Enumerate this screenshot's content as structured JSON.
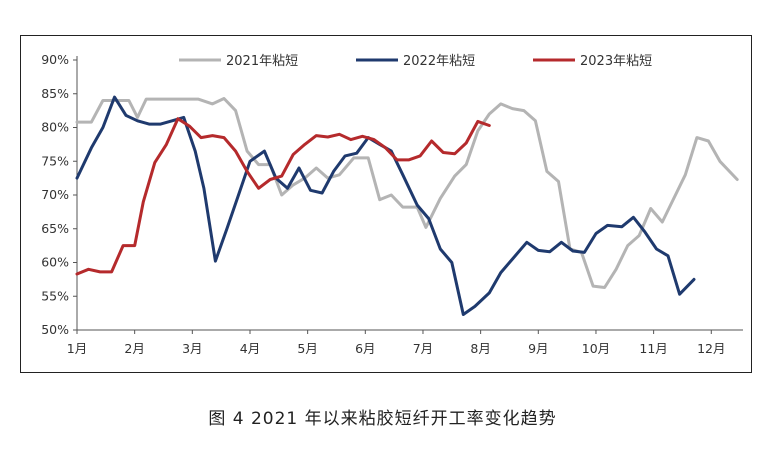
{
  "caption": "图 4 2021 年以来粘胶短纤开工率变化趋势",
  "chart_data": {
    "type": "line",
    "ylim": [
      50,
      90
    ],
    "y_ticks": [
      "50%",
      "55%",
      "60%",
      "65%",
      "70%",
      "75%",
      "80%",
      "85%",
      "90%"
    ],
    "x_ticks": [
      "1月",
      "2月",
      "3月",
      "4月",
      "5月",
      "6月",
      "7月",
      "8月",
      "9月",
      "10月",
      "11月",
      "12月"
    ],
    "legend_position": "top",
    "series": [
      {
        "name": "2021年粘短",
        "color": "#b4b4b4",
        "points": [
          [
            1.0,
            80.8
          ],
          [
            1.25,
            80.8
          ],
          [
            1.45,
            84.0
          ],
          [
            1.65,
            84.0
          ],
          [
            1.9,
            84.0
          ],
          [
            2.05,
            81.5
          ],
          [
            2.2,
            84.2
          ],
          [
            2.5,
            84.2
          ],
          [
            2.8,
            84.2
          ],
          [
            3.1,
            84.2
          ],
          [
            3.35,
            83.5
          ],
          [
            3.55,
            84.3
          ],
          [
            3.75,
            82.5
          ],
          [
            3.95,
            76.5
          ],
          [
            4.15,
            74.5
          ],
          [
            4.35,
            74.5
          ],
          [
            4.55,
            70.0
          ],
          [
            4.75,
            71.5
          ],
          [
            4.95,
            72.5
          ],
          [
            5.15,
            74.0
          ],
          [
            5.35,
            72.5
          ],
          [
            5.55,
            73.0
          ],
          [
            5.8,
            75.5
          ],
          [
            6.05,
            75.5
          ],
          [
            6.25,
            69.3
          ],
          [
            6.45,
            70.0
          ],
          [
            6.65,
            68.2
          ],
          [
            6.9,
            68.2
          ],
          [
            7.05,
            65.2
          ],
          [
            7.3,
            69.5
          ],
          [
            7.55,
            72.8
          ],
          [
            7.75,
            74.5
          ],
          [
            7.95,
            79.5
          ],
          [
            8.15,
            82.0
          ],
          [
            8.35,
            83.5
          ],
          [
            8.55,
            82.8
          ],
          [
            8.75,
            82.5
          ],
          [
            8.95,
            81.0
          ],
          [
            9.15,
            73.5
          ],
          [
            9.35,
            72.0
          ],
          [
            9.55,
            62.0
          ],
          [
            9.75,
            61.5
          ],
          [
            9.95,
            56.5
          ],
          [
            10.15,
            56.3
          ],
          [
            10.35,
            59.0
          ],
          [
            10.55,
            62.5
          ],
          [
            10.75,
            64.0
          ],
          [
            10.95,
            68.0
          ],
          [
            11.15,
            66.0
          ],
          [
            11.35,
            69.5
          ],
          [
            11.55,
            73.0
          ],
          [
            11.75,
            78.5
          ],
          [
            11.95,
            78.0
          ],
          [
            12.15,
            75.0
          ],
          [
            12.45,
            72.3
          ]
        ]
      },
      {
        "name": "2022年粘短",
        "color": "#1f3a6e",
        "points": [
          [
            1.0,
            72.5
          ],
          [
            1.25,
            77.0
          ],
          [
            1.45,
            80.0
          ],
          [
            1.65,
            84.5
          ],
          [
            1.85,
            81.8
          ],
          [
            2.05,
            81.0
          ],
          [
            2.25,
            80.5
          ],
          [
            2.45,
            80.5
          ],
          [
            2.65,
            81.0
          ],
          [
            2.85,
            81.5
          ],
          [
            3.05,
            76.5
          ],
          [
            3.2,
            71.0
          ],
          [
            3.4,
            60.2
          ],
          [
            3.6,
            65.0
          ],
          [
            3.8,
            70.0
          ],
          [
            4.0,
            75.0
          ],
          [
            4.25,
            76.5
          ],
          [
            4.45,
            72.5
          ],
          [
            4.65,
            71.0
          ],
          [
            4.85,
            74.0
          ],
          [
            5.05,
            70.7
          ],
          [
            5.25,
            70.3
          ],
          [
            5.45,
            73.5
          ],
          [
            5.65,
            75.8
          ],
          [
            5.85,
            76.2
          ],
          [
            6.05,
            78.5
          ],
          [
            6.25,
            77.5
          ],
          [
            6.45,
            76.5
          ],
          [
            6.65,
            73.0
          ],
          [
            6.9,
            68.5
          ],
          [
            7.1,
            66.5
          ],
          [
            7.3,
            62.0
          ],
          [
            7.5,
            60.0
          ],
          [
            7.7,
            52.3
          ],
          [
            7.9,
            53.5
          ],
          [
            8.15,
            55.5
          ],
          [
            8.35,
            58.5
          ],
          [
            8.55,
            60.5
          ],
          [
            8.8,
            63.0
          ],
          [
            9.0,
            61.8
          ],
          [
            9.2,
            61.6
          ],
          [
            9.4,
            63.0
          ],
          [
            9.6,
            61.7
          ],
          [
            9.8,
            61.5
          ],
          [
            10.0,
            64.3
          ],
          [
            10.2,
            65.5
          ],
          [
            10.45,
            65.3
          ],
          [
            10.65,
            66.7
          ],
          [
            10.85,
            64.5
          ],
          [
            11.05,
            62.0
          ],
          [
            11.25,
            61.0
          ],
          [
            11.45,
            55.3
          ],
          [
            11.7,
            57.5
          ]
        ]
      },
      {
        "name": "2023年粘短",
        "color": "#b52a2c",
        "points": [
          [
            1.0,
            58.3
          ],
          [
            1.2,
            59.0
          ],
          [
            1.4,
            58.6
          ],
          [
            1.6,
            58.6
          ],
          [
            1.8,
            62.5
          ],
          [
            2.0,
            62.5
          ],
          [
            2.15,
            69.0
          ],
          [
            2.35,
            74.8
          ],
          [
            2.55,
            77.5
          ],
          [
            2.75,
            81.3
          ],
          [
            2.95,
            80.2
          ],
          [
            3.15,
            78.5
          ],
          [
            3.35,
            78.8
          ],
          [
            3.55,
            78.5
          ],
          [
            3.75,
            76.5
          ],
          [
            3.95,
            73.5
          ],
          [
            4.15,
            71.0
          ],
          [
            4.35,
            72.3
          ],
          [
            4.55,
            72.8
          ],
          [
            4.75,
            76.0
          ],
          [
            4.95,
            77.5
          ],
          [
            5.15,
            78.8
          ],
          [
            5.35,
            78.6
          ],
          [
            5.55,
            79.0
          ],
          [
            5.75,
            78.2
          ],
          [
            5.95,
            78.7
          ],
          [
            6.15,
            78.2
          ],
          [
            6.35,
            77.0
          ],
          [
            6.55,
            75.2
          ],
          [
            6.75,
            75.2
          ],
          [
            6.95,
            75.8
          ],
          [
            7.15,
            78.0
          ],
          [
            7.35,
            76.3
          ],
          [
            7.55,
            76.1
          ],
          [
            7.75,
            77.7
          ],
          [
            7.95,
            80.9
          ],
          [
            8.15,
            80.3
          ]
        ]
      }
    ]
  }
}
